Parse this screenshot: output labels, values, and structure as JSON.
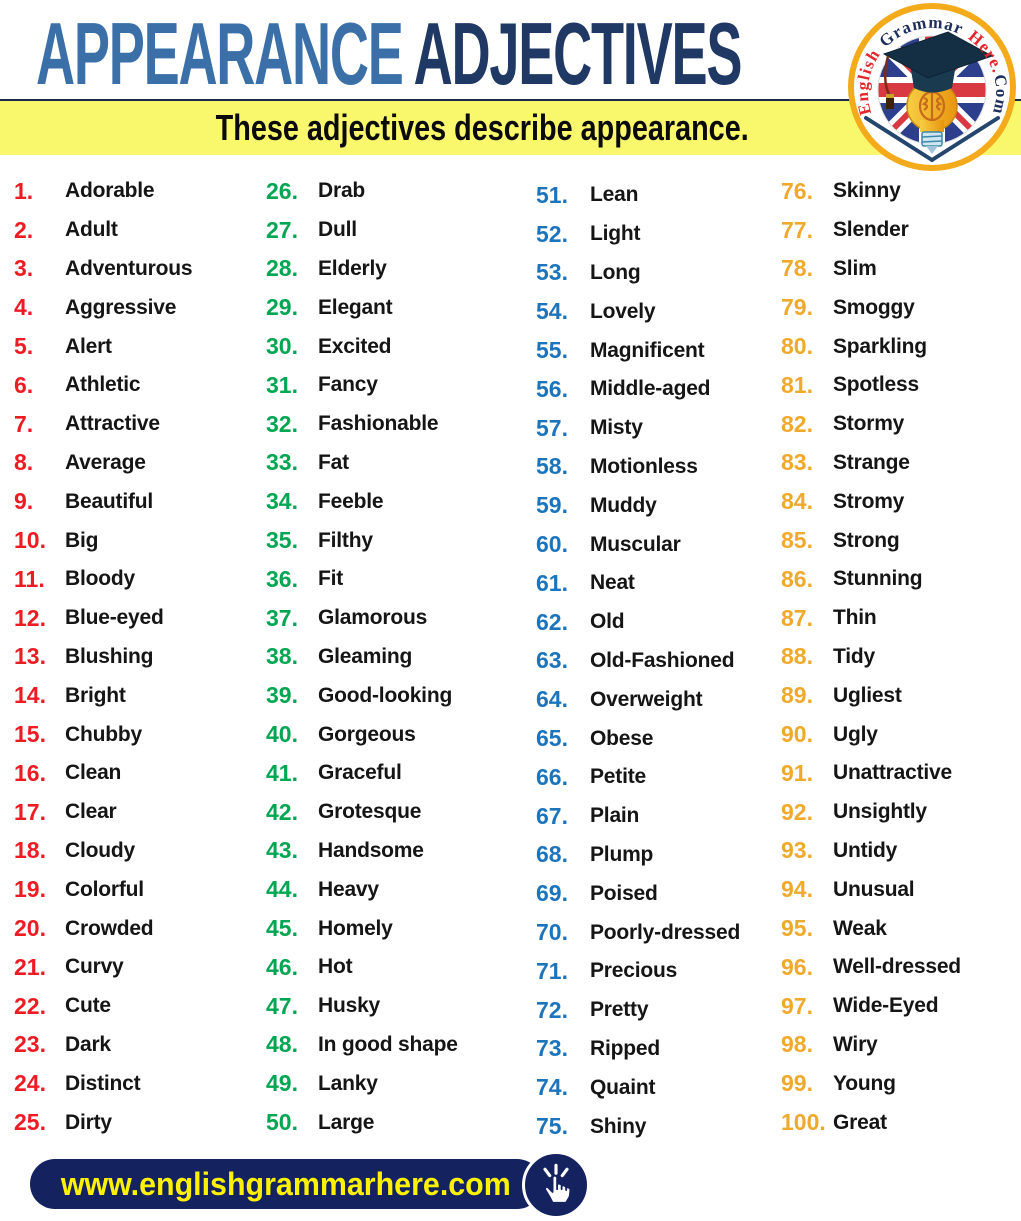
{
  "header": {
    "title_part1": "APPEARANCE",
    "title_part2": "ADJECTIVES",
    "title_part1_color": "#3A6FA8",
    "title_part2_color": "#1F3864"
  },
  "subtitle": "These adjectives describe appearance.",
  "subtitle_bar_color": "#F9F86C",
  "logo": {
    "word1": "English",
    "word2": "Grammar",
    "word3": "Here.",
    "word4": "Com",
    "word_red": "#E3262B",
    "word_navy": "#1E2F5E",
    "ring_color": "#F3AB1C"
  },
  "footer": {
    "url": "www.englishgrammarhere.com",
    "bg_color": "#14235F",
    "text_color": "#FFF200",
    "icon": "hand-pointer-click"
  },
  "columns": [
    {
      "number_color": "#ED1C24",
      "items": [
        {
          "n": "1.",
          "w": "Adorable"
        },
        {
          "n": "2.",
          "w": "Adult"
        },
        {
          "n": "3.",
          "w": "Adventurous"
        },
        {
          "n": "4.",
          "w": "Aggressive"
        },
        {
          "n": "5.",
          "w": "Alert"
        },
        {
          "n": "6.",
          "w": "Athletic"
        },
        {
          "n": "7.",
          "w": "Attractive"
        },
        {
          "n": "8.",
          "w": "Average"
        },
        {
          "n": "9.",
          "w": "Beautiful"
        },
        {
          "n": "10.",
          "w": "Big"
        },
        {
          "n": "11.",
          "w": "Bloody"
        },
        {
          "n": "12.",
          "w": "Blue-eyed"
        },
        {
          "n": "13.",
          "w": "Blushing"
        },
        {
          "n": "14.",
          "w": "Bright"
        },
        {
          "n": "15.",
          "w": "Chubby"
        },
        {
          "n": "16.",
          "w": "Clean"
        },
        {
          "n": "17.",
          "w": "Clear"
        },
        {
          "n": "18.",
          "w": "Cloudy"
        },
        {
          "n": "19.",
          "w": "Colorful"
        },
        {
          "n": "20.",
          "w": "Crowded"
        },
        {
          "n": "21.",
          "w": "Curvy"
        },
        {
          "n": "22.",
          "w": "Cute"
        },
        {
          "n": "23.",
          "w": "Dark"
        },
        {
          "n": "24.",
          "w": "Distinct"
        },
        {
          "n": "25.",
          "w": "Dirty"
        }
      ]
    },
    {
      "number_color": "#00A651",
      "items": [
        {
          "n": "26.",
          "w": "Drab"
        },
        {
          "n": "27.",
          "w": "Dull"
        },
        {
          "n": "28.",
          "w": "Elderly"
        },
        {
          "n": "29.",
          "w": "Elegant"
        },
        {
          "n": "30.",
          "w": "Excited"
        },
        {
          "n": "31.",
          "w": "Fancy"
        },
        {
          "n": "32.",
          "w": "Fashionable"
        },
        {
          "n": "33.",
          "w": "Fat"
        },
        {
          "n": "34.",
          "w": "Feeble"
        },
        {
          "n": "35.",
          "w": "Filthy"
        },
        {
          "n": "36.",
          "w": "Fit"
        },
        {
          "n": "37.",
          "w": "Glamorous"
        },
        {
          "n": "38.",
          "w": "Gleaming"
        },
        {
          "n": "39.",
          "w": "Good-looking"
        },
        {
          "n": "40.",
          "w": "Gorgeous"
        },
        {
          "n": "41.",
          "w": "Graceful"
        },
        {
          "n": "42.",
          "w": "Grotesque"
        },
        {
          "n": "43.",
          "w": "Handsome"
        },
        {
          "n": "44.",
          "w": "Heavy"
        },
        {
          "n": "45.",
          "w": "Homely"
        },
        {
          "n": "46.",
          "w": "Hot"
        },
        {
          "n": "47.",
          "w": "Husky"
        },
        {
          "n": "48.",
          "w": "In good shape"
        },
        {
          "n": "49.",
          "w": "Lanky"
        },
        {
          "n": "50.",
          "w": "Large"
        }
      ]
    },
    {
      "number_color": "#1C75BC",
      "items": [
        {
          "n": "51.",
          "w": "Lean"
        },
        {
          "n": "52.",
          "w": "Light"
        },
        {
          "n": "53.",
          "w": "Long"
        },
        {
          "n": "54.",
          "w": "Lovely"
        },
        {
          "n": "55.",
          "w": "Magnificent"
        },
        {
          "n": "56.",
          "w": "Middle-aged"
        },
        {
          "n": "57.",
          "w": "Misty"
        },
        {
          "n": "58.",
          "w": "Motionless"
        },
        {
          "n": "59.",
          "w": "Muddy"
        },
        {
          "n": "60.",
          "w": "Muscular"
        },
        {
          "n": "61.",
          "w": "Neat"
        },
        {
          "n": "62.",
          "w": "Old"
        },
        {
          "n": "63.",
          "w": "Old-Fashioned"
        },
        {
          "n": "64.",
          "w": "Overweight"
        },
        {
          "n": "65.",
          "w": "Obese"
        },
        {
          "n": "66.",
          "w": "Petite"
        },
        {
          "n": "67.",
          "w": "Plain"
        },
        {
          "n": "68.",
          "w": "Plump"
        },
        {
          "n": "69.",
          "w": "Poised"
        },
        {
          "n": "70.",
          "w": "Poorly-dressed"
        },
        {
          "n": "71.",
          "w": "Precious"
        },
        {
          "n": "72.",
          "w": "Pretty"
        },
        {
          "n": "73.",
          "w": "Ripped"
        },
        {
          "n": "74.",
          "w": "Quaint"
        },
        {
          "n": "75.",
          "w": "Shiny"
        }
      ]
    },
    {
      "number_color": "#EFA92D",
      "items": [
        {
          "n": "76.",
          "w": "Skinny"
        },
        {
          "n": "77.",
          "w": "Slender"
        },
        {
          "n": "78.",
          "w": "Slim"
        },
        {
          "n": "79.",
          "w": "Smoggy"
        },
        {
          "n": "80.",
          "w": "Sparkling"
        },
        {
          "n": "81.",
          "w": "Spotless"
        },
        {
          "n": "82.",
          "w": "Stormy"
        },
        {
          "n": "83.",
          "w": "Strange"
        },
        {
          "n": "84.",
          "w": "Stromy"
        },
        {
          "n": "85.",
          "w": "Strong"
        },
        {
          "n": "86.",
          "w": "Stunning"
        },
        {
          "n": "87.",
          "w": "Thin"
        },
        {
          "n": "88.",
          "w": "Tidy"
        },
        {
          "n": "89.",
          "w": "Ugliest"
        },
        {
          "n": "90.",
          "w": "Ugly"
        },
        {
          "n": "91.",
          "w": "Unattractive"
        },
        {
          "n": "92.",
          "w": "Unsightly"
        },
        {
          "n": "93.",
          "w": "Untidy"
        },
        {
          "n": "94.",
          "w": "Unusual"
        },
        {
          "n": "95.",
          "w": "Weak"
        },
        {
          "n": "96.",
          "w": "Well-dressed"
        },
        {
          "n": "97.",
          "w": "Wide-Eyed"
        },
        {
          "n": "98.",
          "w": "Wiry"
        },
        {
          "n": "99.",
          "w": "Young"
        },
        {
          "n": "100.",
          "w": "Great"
        }
      ]
    }
  ]
}
